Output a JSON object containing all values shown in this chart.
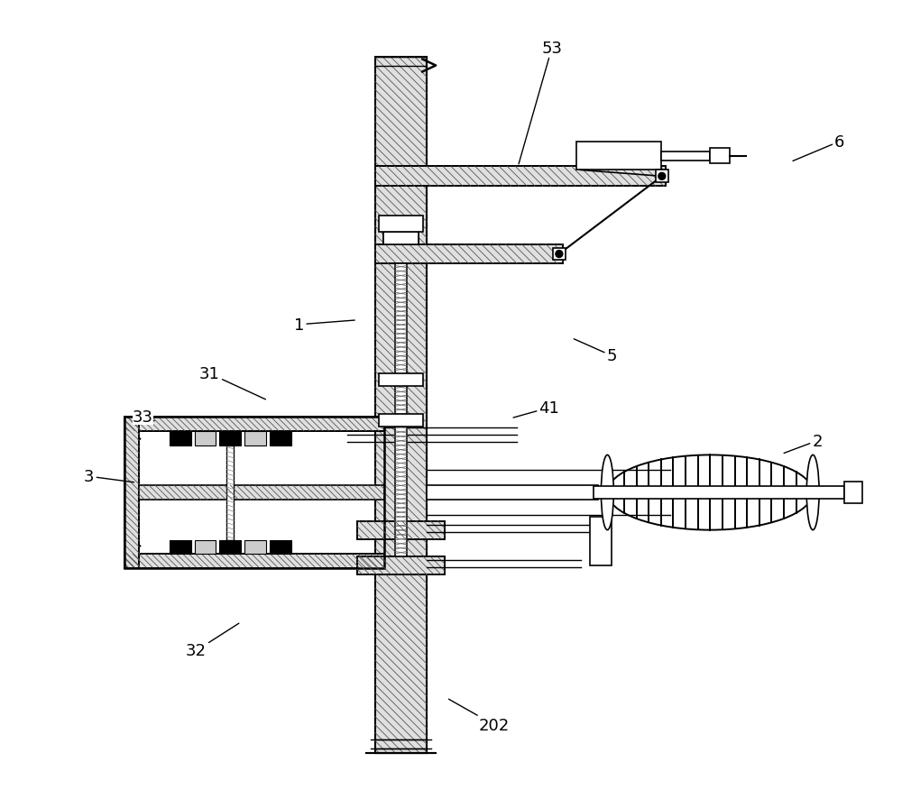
{
  "bg_color": "#ffffff",
  "fig_width": 10.0,
  "fig_height": 8.87,
  "labels_info": [
    [
      "1",
      330,
      360,
      395,
      355
    ],
    [
      "2",
      910,
      490,
      870,
      505
    ],
    [
      "3",
      95,
      530,
      148,
      537
    ],
    [
      "5",
      680,
      395,
      635,
      375
    ],
    [
      "6",
      935,
      155,
      880,
      178
    ],
    [
      "31",
      230,
      415,
      295,
      445
    ],
    [
      "32",
      215,
      725,
      265,
      693
    ],
    [
      "33",
      155,
      463,
      168,
      468
    ],
    [
      "41",
      610,
      453,
      567,
      465
    ],
    [
      "53",
      613,
      50,
      575,
      183
    ],
    [
      "202",
      548,
      808,
      495,
      778
    ]
  ]
}
